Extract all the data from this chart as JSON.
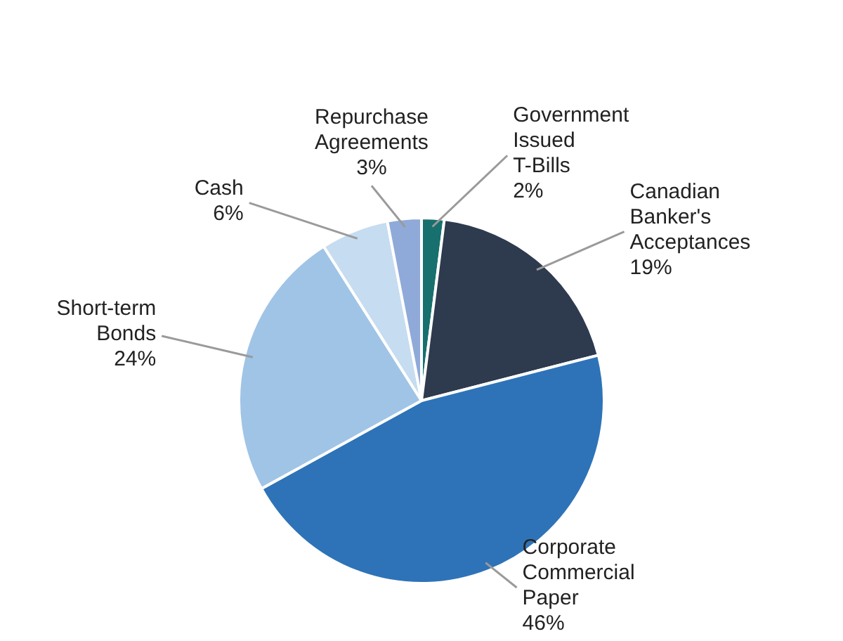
{
  "chart_data": {
    "type": "pie",
    "categories": [
      "Government Issued T-Bills",
      "Canadian Banker's Acceptances",
      "Corporate Commercial Paper",
      "Short-term Bonds",
      "Cash",
      "Repurchase Agreements"
    ],
    "values": [
      2,
      19,
      46,
      24,
      6,
      3
    ],
    "colors": [
      "#17706e",
      "#2e3a4e",
      "#2e73b8",
      "#9fc4e6",
      "#c6dcf0",
      "#8faad8"
    ],
    "value_labels": [
      "2%",
      "19%",
      "46%",
      "24%",
      "6%",
      "3%"
    ]
  }
}
